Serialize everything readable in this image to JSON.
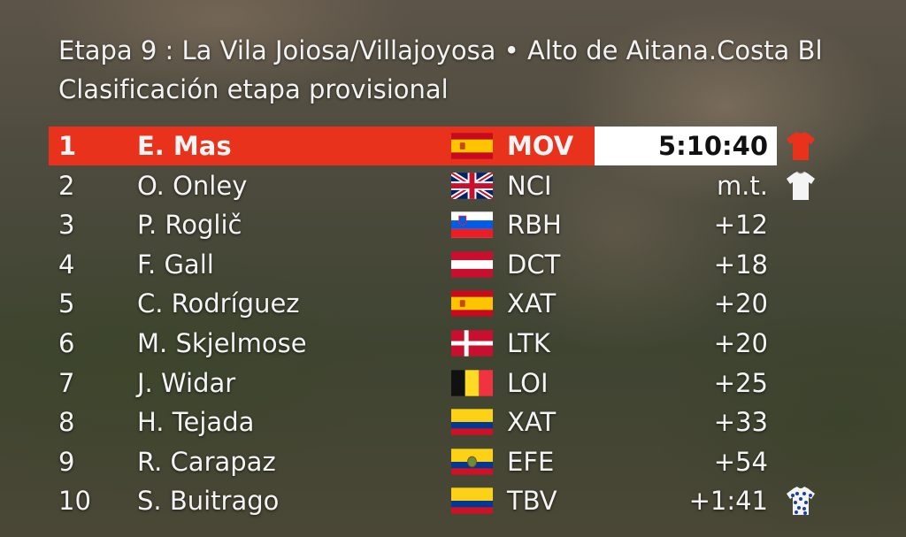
{
  "header": {
    "title": "Etapa 9 : La Vila Joiosa/Villajoyosa • Alto de Aitana.Costa Bl",
    "subtitle": "Clasificación etapa provisional"
  },
  "table": {
    "rows": [
      [
        "1",
        "E. Mas",
        "MOV",
        "5:10:40"
      ],
      [
        "2",
        "O. Onley",
        "NCI",
        "m.t."
      ],
      [
        "3",
        "P. Roglič",
        "RBH",
        "+12"
      ],
      [
        "4",
        "F. Gall",
        "DCT",
        "+18"
      ],
      [
        "5",
        "C. Rodríguez",
        "XAT",
        "+20"
      ],
      [
        "6",
        "M. Skjelmose",
        "LTK",
        "+20"
      ],
      [
        "7",
        "J. Widar",
        "LOI",
        "+25"
      ],
      [
        "8",
        "H. Tejada",
        "XAT",
        "+33"
      ],
      [
        "9",
        "R. Carapaz",
        "EFE",
        "+54"
      ],
      [
        "10",
        "S. Buitrago",
        "TBV",
        "+1:41"
      ]
    ]
  }
}
